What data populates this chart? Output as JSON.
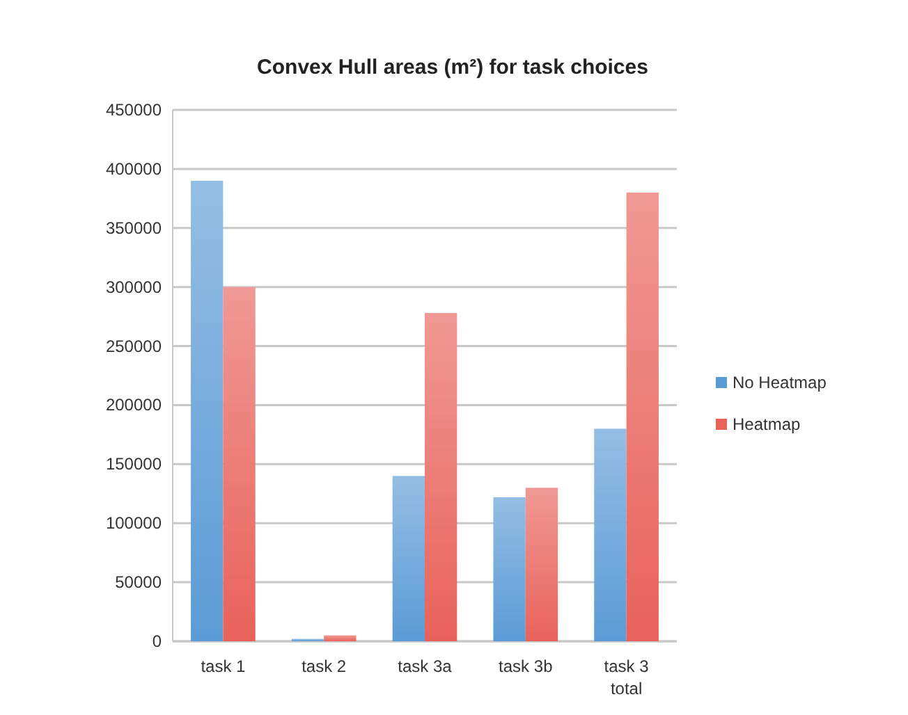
{
  "chart_data": {
    "type": "bar",
    "title": "Convex Hull areas (m²) for task choices",
    "categories": [
      "task 1",
      "task 2",
      "task 3a",
      "task 3b",
      "task 3 total"
    ],
    "series": [
      {
        "name": "No Heatmap",
        "color": "#5b9bd5",
        "values": [
          390000,
          2000,
          140000,
          122000,
          180000
        ]
      },
      {
        "name": "Heatmap",
        "color": "#e8625a",
        "values": [
          300000,
          5000,
          278000,
          130000,
          380000
        ]
      }
    ],
    "ylim": [
      0,
      450000
    ],
    "yticks": [
      0,
      50000,
      100000,
      150000,
      200000,
      250000,
      300000,
      350000,
      400000,
      450000
    ],
    "grid": "y",
    "legend": "right"
  }
}
